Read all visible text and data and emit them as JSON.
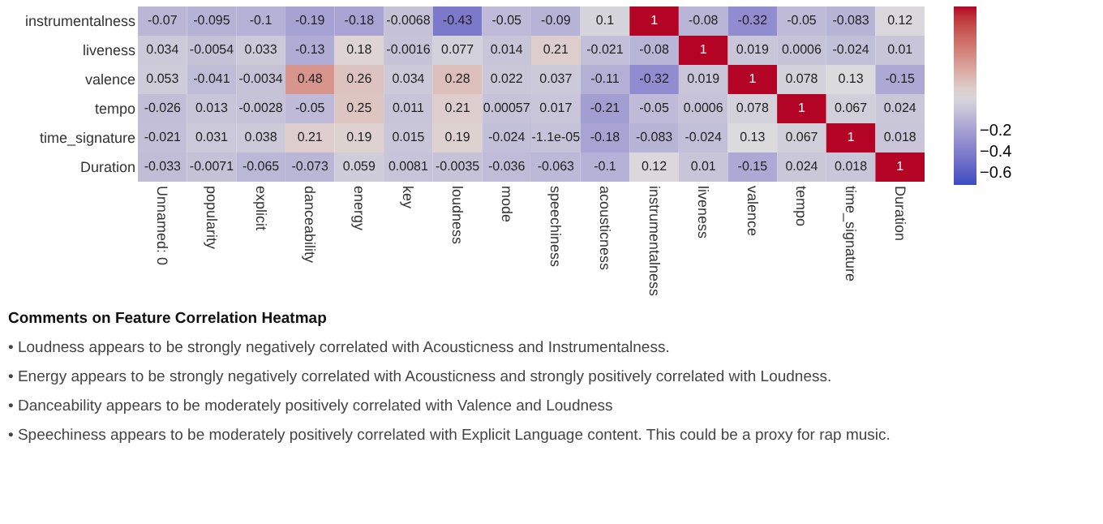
{
  "chart_data": {
    "type": "heatmap",
    "categories": [
      "Unnamed: 0",
      "popularity",
      "explicit",
      "danceability",
      "energy",
      "key",
      "loudness",
      "mode",
      "speechiness",
      "acousticness",
      "instrumentalness",
      "liveness",
      "valence",
      "tempo",
      "time_signature",
      "Duration"
    ],
    "y_categories": [
      "instrumentalness",
      "liveness",
      "valence",
      "tempo",
      "time_signature",
      "Duration"
    ],
    "cells": [
      [
        -0.07,
        -0.095,
        -0.1,
        -0.19,
        -0.18,
        -0.0068,
        -0.43,
        -0.05,
        -0.09,
        0.1,
        1,
        -0.08,
        -0.32,
        -0.05,
        -0.083,
        0.12
      ],
      [
        0.034,
        -0.0054,
        0.033,
        -0.13,
        0.18,
        -0.0016,
        0.077,
        0.014,
        0.21,
        -0.021,
        -0.08,
        1,
        0.019,
        0.0006,
        -0.024,
        0.01
      ],
      [
        0.053,
        -0.041,
        -0.0034,
        0.48,
        0.26,
        0.034,
        0.28,
        0.022,
        0.037,
        -0.11,
        -0.32,
        0.019,
        1,
        0.078,
        0.13,
        -0.15
      ],
      [
        -0.026,
        0.013,
        -0.0028,
        -0.05,
        0.25,
        0.011,
        0.21,
        0.00057,
        0.017,
        -0.21,
        -0.05,
        0.0006,
        0.078,
        1,
        0.067,
        0.024
      ],
      [
        -0.021,
        0.031,
        0.038,
        0.21,
        0.19,
        0.015,
        0.19,
        -0.024,
        -1.1e-05,
        -0.18,
        -0.083,
        -0.024,
        0.13,
        0.067,
        1,
        0.018
      ],
      [
        -0.033,
        -0.0071,
        -0.065,
        -0.073,
        0.059,
        0.0081,
        -0.0035,
        -0.036,
        -0.063,
        -0.1,
        0.12,
        0.01,
        -0.15,
        0.024,
        0.018,
        1
      ]
    ],
    "data_labels": true,
    "clim": [
      -0.72,
      1
    ],
    "cticks": [
      -0.6,
      -0.4,
      -0.2
    ],
    "annotations": [
      "Comments on Feature Correlation Heatmap",
      "• Loudness appears to be strongly negatively correlated with Acousticness and Instrumentalness.",
      "• Energy appears to be strongly negatively correlated with Acousticness and strongly positively correlated with Loudness.",
      "• Danceability appears to be moderately positively correlated with Valence and Loudness",
      "• Speechiness appears to be moderately positively correlated with Explicit Language content. This could be a proxy for rap music."
    ]
  }
}
